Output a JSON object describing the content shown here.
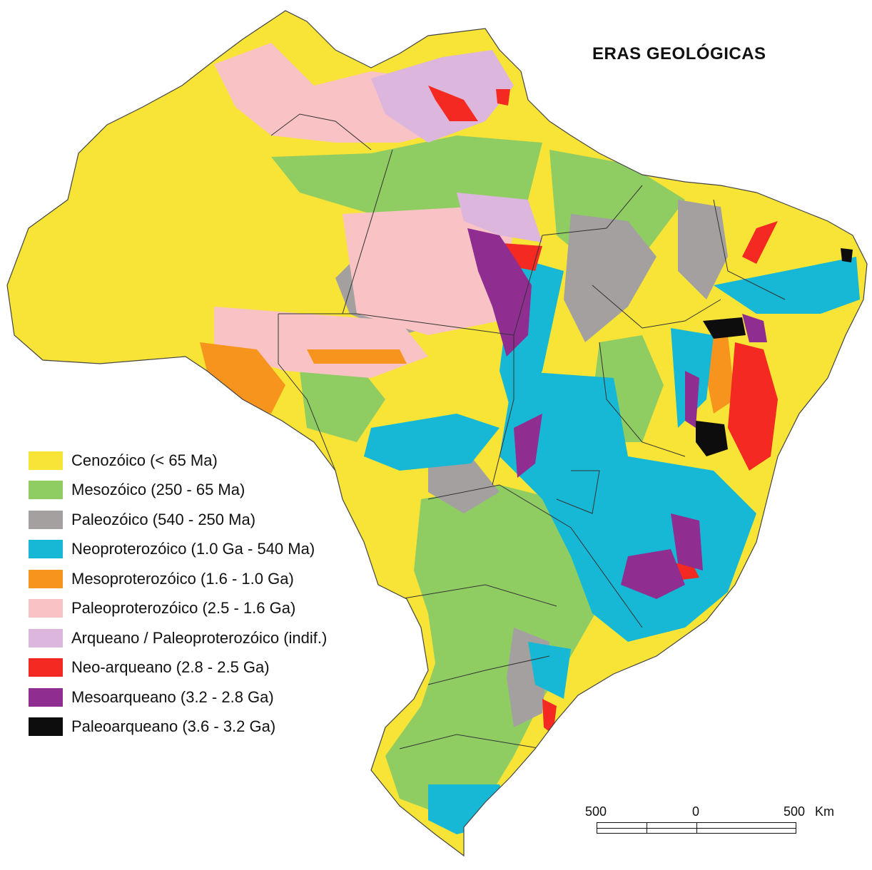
{
  "title": "ERAS GEOLÓGICAS",
  "legend": [
    {
      "label": "Cenozóico (< 65 Ma)",
      "color": "#f7e436"
    },
    {
      "label": "Mesozóico (250 - 65 Ma)",
      "color": "#8fcd63"
    },
    {
      "label": "Paleozóico (540 - 250 Ma)",
      "color": "#a4a0a0"
    },
    {
      "label": "Neoproterozóico (1.0 Ga - 540 Ma)",
      "color": "#17b8d5"
    },
    {
      "label": "Mesoproterozóico (1.6 - 1.0 Ga)",
      "color": "#f7941d"
    },
    {
      "label": "Paleoproterozóico (2.5 - 1.6 Ga)",
      "color": "#f9c3c5"
    },
    {
      "label": "Arqueano / Paleoproterozóico (indif.)",
      "color": "#dcb6dc"
    },
    {
      "label": "Neo-arqueano (2.8 - 2.5 Ga)",
      "color": "#f42a22"
    },
    {
      "label": "Mesoarqueano (3.2 - 2.8 Ga)",
      "color": "#8f2d91"
    },
    {
      "label": "Paleoarqueano (3.6 - 3.2 Ga)",
      "color": "#0d0d0d"
    }
  ],
  "scale": {
    "left": "500",
    "middle": "0",
    "right": "500",
    "unit": "Km"
  }
}
